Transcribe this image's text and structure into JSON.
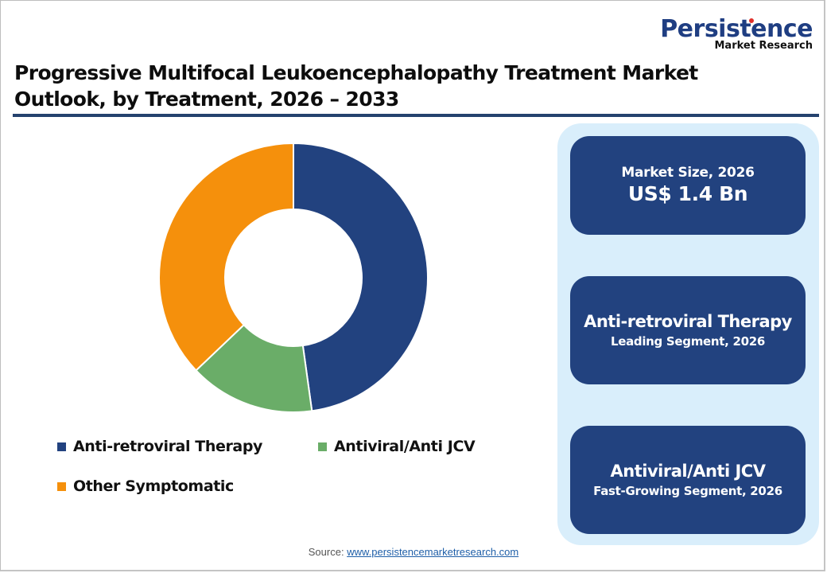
{
  "logo": {
    "name": "Persistence",
    "tagline": "Market Research"
  },
  "header": {
    "title": "Progressive Multifocal Leukoencephalopathy Treatment Market Outlook, by Treatment, 2026 – 2033"
  },
  "chart_data": {
    "type": "pie",
    "variant": "donut",
    "title": "Progressive Multifocal Leukoencephalopathy Treatment Market Outlook, by Treatment, 2026 – 2033",
    "categories": [
      "Anti-retroviral Therapy",
      "Antiviral/Anti JCV",
      "Other Symptomatic"
    ],
    "values": [
      47.8,
      15.1,
      37.1
    ],
    "unit": "% share (estimated from slice angles)",
    "colors": [
      "#22427f",
      "#6aad68",
      "#f5900c"
    ],
    "start_angle_deg": 0,
    "direction": "clockwise",
    "legend_position": "bottom",
    "data_labels": false
  },
  "legend": {
    "items": [
      {
        "label": "Anti-retroviral Therapy",
        "color": "#22427f"
      },
      {
        "label": "Antiviral/Anti JCV",
        "color": "#6aad68"
      },
      {
        "label": "Other Symptomatic",
        "color": "#f5900c"
      }
    ]
  },
  "cards": {
    "market_size": {
      "label": "Market Size, 2026",
      "value": "US$ 1.4 Bn"
    },
    "leading": {
      "title": "Anti-retroviral Therapy",
      "subtitle": "Leading Segment, 2026"
    },
    "fast_growing": {
      "title": "Antiviral/Anti JCV",
      "subtitle": "Fast-Growing Segment, 2026"
    }
  },
  "footer": {
    "source_label": "Source:",
    "source_link": "www.persistencemarketresearch.com"
  },
  "colors": {
    "accent": "#22427f",
    "panel_bg": "#d9eefb",
    "rule": "#25426e"
  }
}
